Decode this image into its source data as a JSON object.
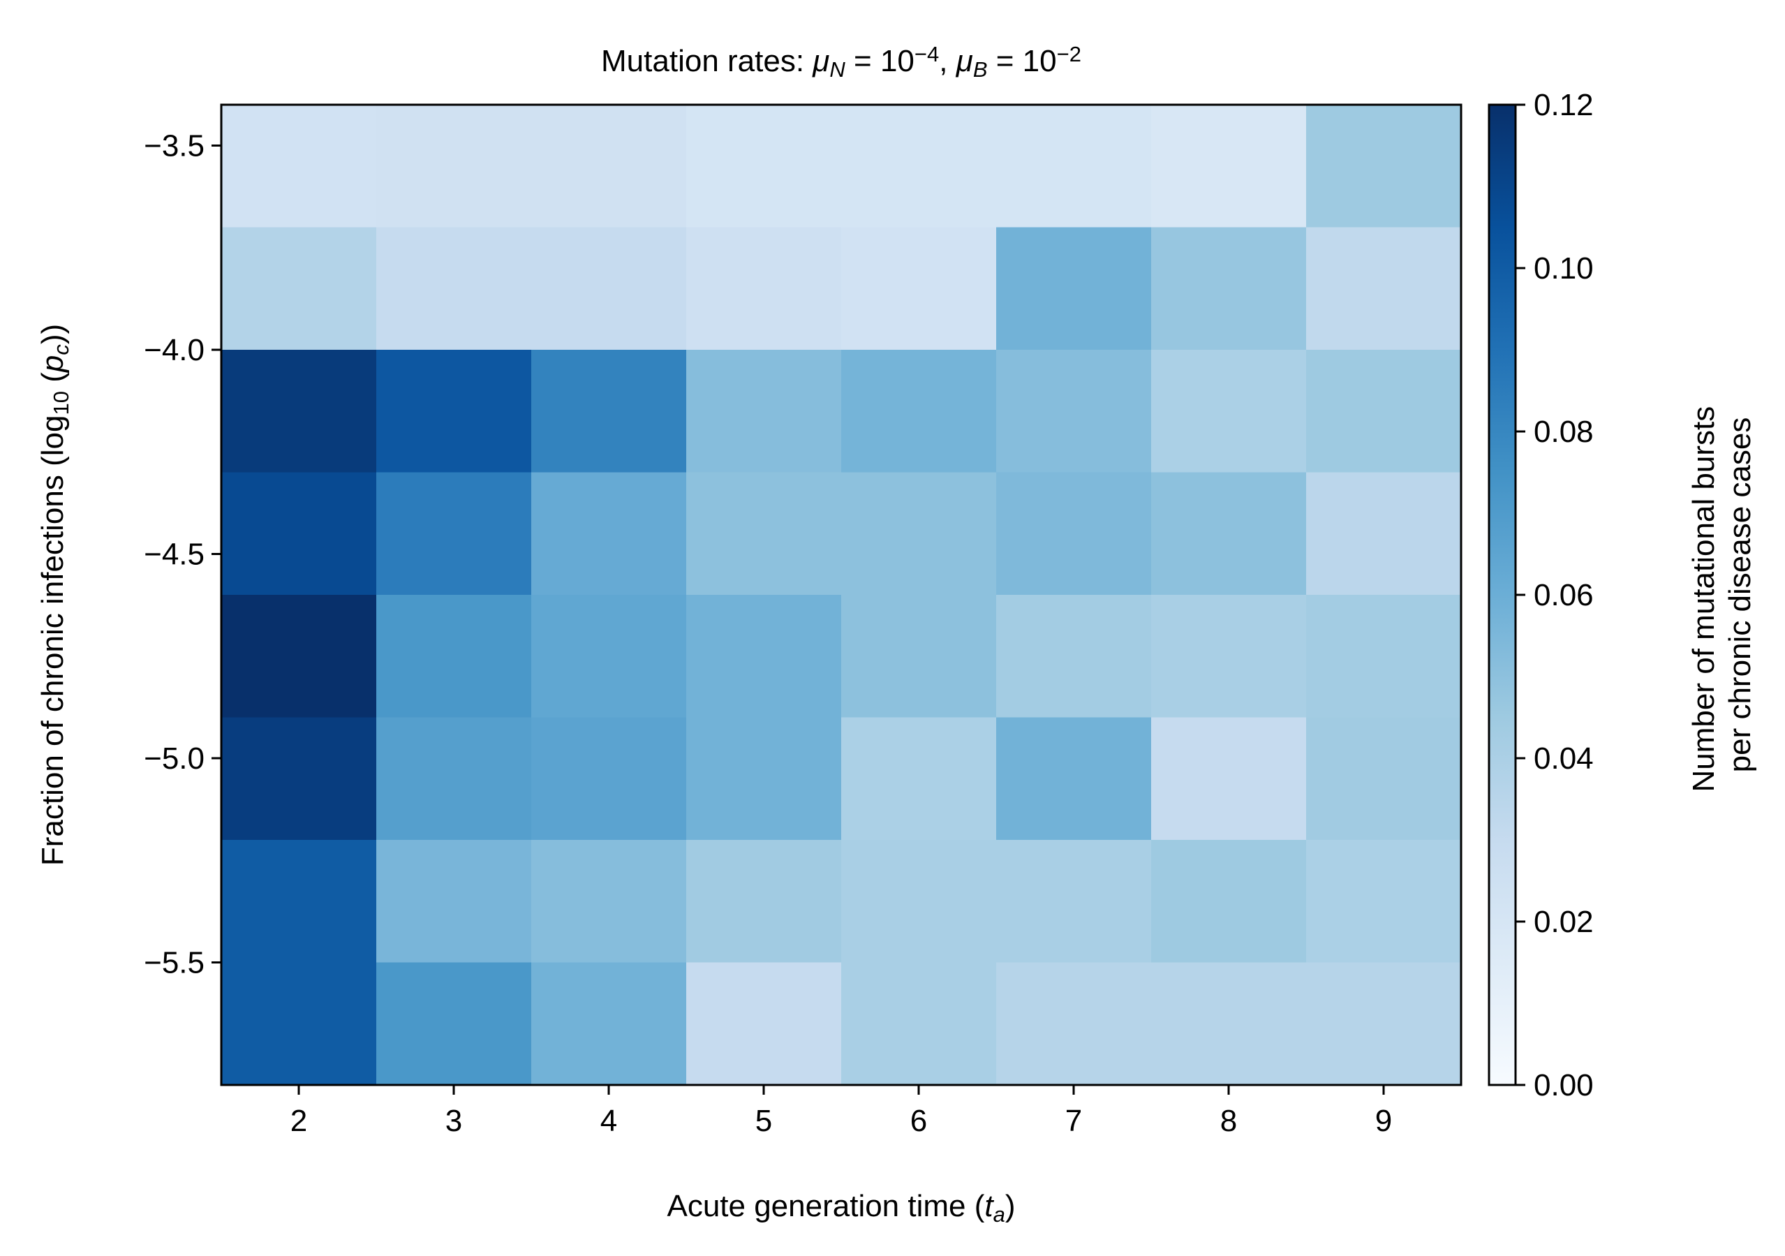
{
  "chart_data": {
    "type": "heatmap",
    "title_parts": [
      {
        "text": "Mutation rates: "
      },
      {
        "text": "μ",
        "style": "italic"
      },
      {
        "text": "N",
        "style": "italic-sub"
      },
      {
        "text": " = 10"
      },
      {
        "text": "−4",
        "style": "sup"
      },
      {
        "text": ", "
      },
      {
        "text": "μ",
        "style": "italic"
      },
      {
        "text": "B",
        "style": "italic-sub"
      },
      {
        "text": " = 10"
      },
      {
        "text": "−2",
        "style": "sup"
      }
    ],
    "xlabel_parts": [
      {
        "text": "Acute generation time ("
      },
      {
        "text": "t",
        "style": "italic"
      },
      {
        "text": "a",
        "style": "italic-sub"
      },
      {
        "text": ")"
      }
    ],
    "ylabel_parts": [
      {
        "text": "Fraction of chronic infections (log"
      },
      {
        "text": "10",
        "style": "sub"
      },
      {
        "text": " ("
      },
      {
        "text": "p",
        "style": "italic"
      },
      {
        "text": "c",
        "style": "italic-sub"
      },
      {
        "text": "))"
      }
    ],
    "colorbar_label": [
      "Number of mutational bursts",
      "per chronic disease cases"
    ],
    "x_values": [
      2,
      3,
      4,
      5,
      6,
      7,
      8,
      9
    ],
    "x_tick_labels": [
      "2",
      "3",
      "4",
      "5",
      "6",
      "7",
      "8",
      "9"
    ],
    "y_values": [
      -3.5,
      -3.8,
      -4.1,
      -4.4,
      -4.7,
      -5.0,
      -5.3,
      -5.6
    ],
    "y_range": [
      -5.8,
      -3.4
    ],
    "y_ticks": [
      -3.5,
      -4.0,
      -4.5,
      -5.0,
      -5.5
    ],
    "y_tick_labels": [
      "−3.5",
      "−4.0",
      "−4.5",
      "−5.0",
      "−5.5"
    ],
    "z": [
      [
        0.023,
        0.024,
        0.024,
        0.021,
        0.021,
        0.021,
        0.019,
        0.045
      ],
      [
        0.037,
        0.03,
        0.03,
        0.025,
        0.023,
        0.058,
        0.047,
        0.032
      ],
      [
        0.115,
        0.102,
        0.082,
        0.052,
        0.057,
        0.052,
        0.04,
        0.045
      ],
      [
        0.108,
        0.085,
        0.062,
        0.05,
        0.05,
        0.054,
        0.05,
        0.034
      ],
      [
        0.12,
        0.072,
        0.064,
        0.058,
        0.05,
        0.043,
        0.041,
        0.043
      ],
      [
        0.114,
        0.068,
        0.066,
        0.058,
        0.04,
        0.058,
        0.03,
        0.044
      ],
      [
        0.1,
        0.056,
        0.052,
        0.044,
        0.041,
        0.041,
        0.045,
        0.04
      ],
      [
        0.1,
        0.072,
        0.058,
        0.03,
        0.041,
        0.036,
        0.036,
        0.036
      ]
    ],
    "zlim": [
      0.0,
      0.12
    ],
    "colorbar_ticks": [
      0.0,
      0.02,
      0.04,
      0.06,
      0.08,
      0.1,
      0.12
    ],
    "colorbar_tick_labels": [
      "0.00",
      "0.02",
      "0.04",
      "0.06",
      "0.08",
      "0.10",
      "0.12"
    ],
    "colormap": "Blues",
    "colormap_stops": [
      "#f7fbff",
      "#deebf7",
      "#c6dbef",
      "#9ecae1",
      "#6baed6",
      "#4292c6",
      "#2171b5",
      "#08519c",
      "#08306b"
    ],
    "grid": false
  }
}
